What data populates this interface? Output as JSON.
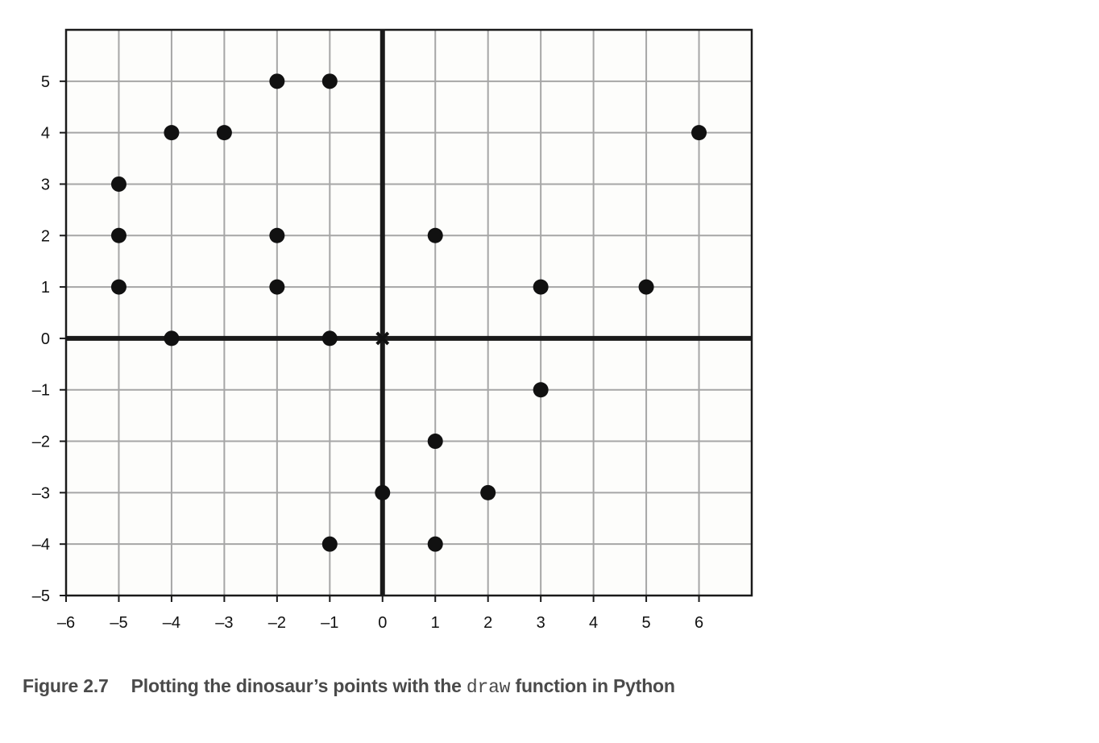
{
  "chart_data": {
    "type": "scatter",
    "xlim": [
      -6,
      7
    ],
    "ylim": [
      -5,
      6
    ],
    "x_ticks": [
      -6,
      -5,
      -4,
      -3,
      -2,
      -1,
      0,
      1,
      2,
      3,
      4,
      5,
      6
    ],
    "y_ticks": [
      -5,
      -4,
      -3,
      -2,
      -1,
      0,
      1,
      2,
      3,
      4,
      5
    ],
    "x_tick_labels": [
      "–6",
      "–5",
      "–4",
      "–3",
      "–2",
      "–1",
      "0",
      "1",
      "2",
      "3",
      "4",
      "5",
      "6"
    ],
    "y_tick_labels": [
      "–5",
      "–4",
      "–3",
      "–2",
      "–1",
      "0",
      "1",
      "2",
      "3",
      "4",
      "5"
    ],
    "grid": true,
    "origin_marker": true,
    "points": [
      [
        6,
        4
      ],
      [
        3,
        1
      ],
      [
        1,
        2
      ],
      [
        -1,
        5
      ],
      [
        -2,
        5
      ],
      [
        -3,
        4
      ],
      [
        -4,
        4
      ],
      [
        -5,
        3
      ],
      [
        -5,
        2
      ],
      [
        -2,
        2
      ],
      [
        -5,
        1
      ],
      [
        -4,
        0
      ],
      [
        -2,
        1
      ],
      [
        -1,
        0
      ],
      [
        0,
        -3
      ],
      [
        -1,
        -4
      ],
      [
        1,
        -4
      ],
      [
        2,
        -3
      ],
      [
        1,
        -2
      ],
      [
        3,
        -1
      ],
      [
        5,
        1
      ]
    ],
    "colors": {
      "grid": "#a6a6a6",
      "axes": "#1a1a1a",
      "points": "#111111",
      "background": "#fdfdfb"
    }
  },
  "caption": {
    "figure_number": "Figure 2.7",
    "text_before": "Plotting the dinosaur’s points with the ",
    "code": "draw",
    "text_after": " function in Python"
  }
}
